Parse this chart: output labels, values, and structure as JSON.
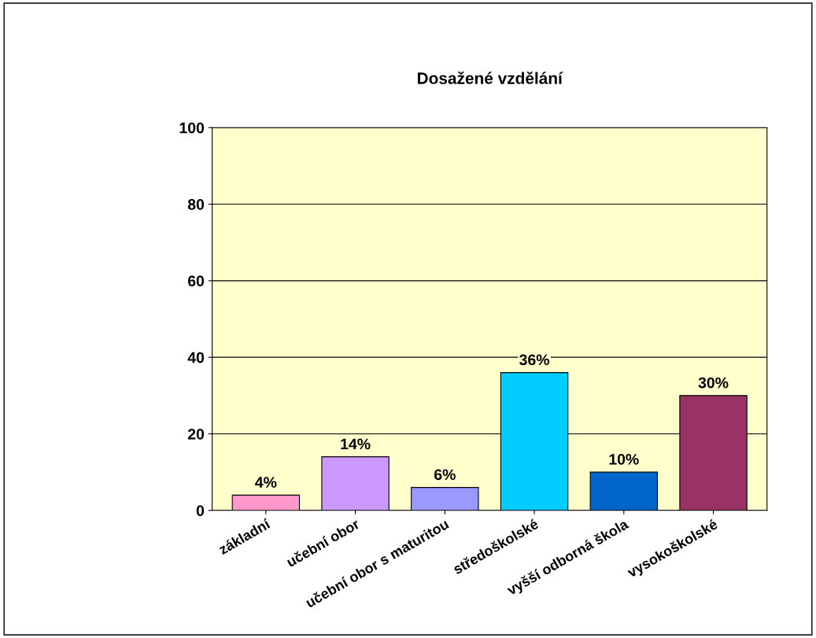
{
  "chart_data": {
    "type": "bar",
    "title": "Dosažené vzdělání",
    "categories": [
      "základní",
      "učební obor",
      "učební obor s maturitou",
      "středoškolské",
      "vyšší odborná škola",
      "vysokoškolské"
    ],
    "values": [
      4,
      14,
      6,
      36,
      10,
      30
    ],
    "colors": [
      "#ff99cc",
      "#cc99ff",
      "#9999ff",
      "#00ccff",
      "#0066cc",
      "#993366"
    ],
    "value_labels": [
      "4%",
      "14%",
      "6%",
      "36%",
      "10%",
      "30%"
    ],
    "ylim": [
      0,
      100
    ],
    "yticks": [
      0,
      20,
      40,
      60,
      80,
      100
    ],
    "grid": "y"
  }
}
